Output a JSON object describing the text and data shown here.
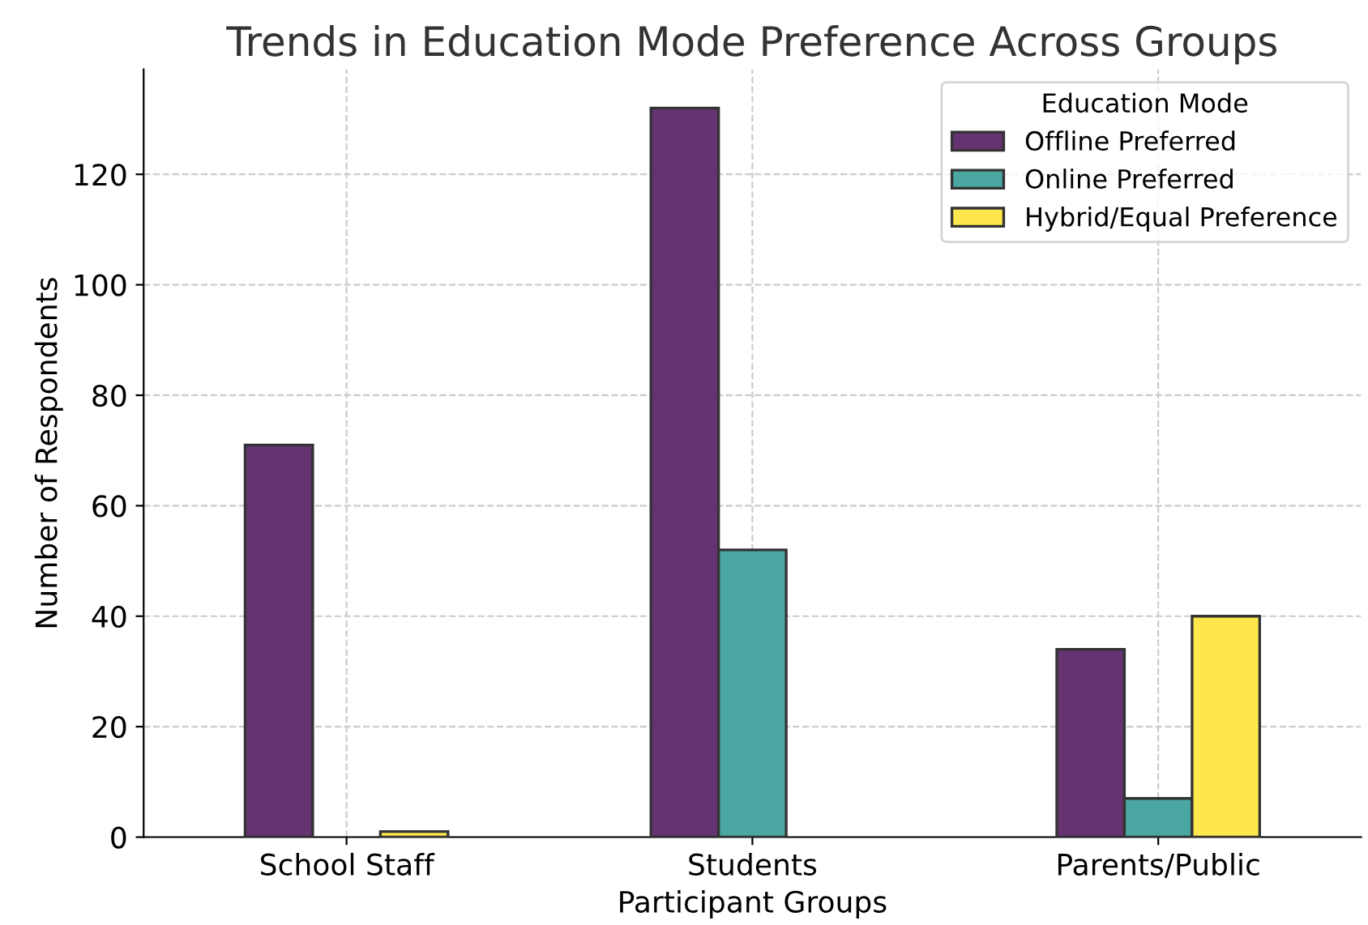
{
  "chart_data": {
    "type": "bar",
    "title": "Trends in Education Mode Preference Across Groups",
    "xlabel": "Participant Groups",
    "ylabel": "Number of Respondents",
    "legend_title": "Education Mode",
    "categories": [
      "School Staff",
      "Students",
      "Parents/Public"
    ],
    "series": [
      {
        "name": "Offline Preferred",
        "color": "#663372",
        "values": [
          71,
          132,
          34
        ]
      },
      {
        "name": "Online Preferred",
        "color": "#4aa6a0",
        "values": [
          null,
          52,
          7
        ]
      },
      {
        "name": "Hybrid/Equal Preference",
        "color": "#fde74c",
        "values": [
          1,
          null,
          40
        ]
      }
    ],
    "ylim": [
      0,
      139
    ],
    "yticks": [
      0,
      20,
      40,
      60,
      80,
      100,
      120
    ],
    "grid": true,
    "legend": "top right"
  }
}
